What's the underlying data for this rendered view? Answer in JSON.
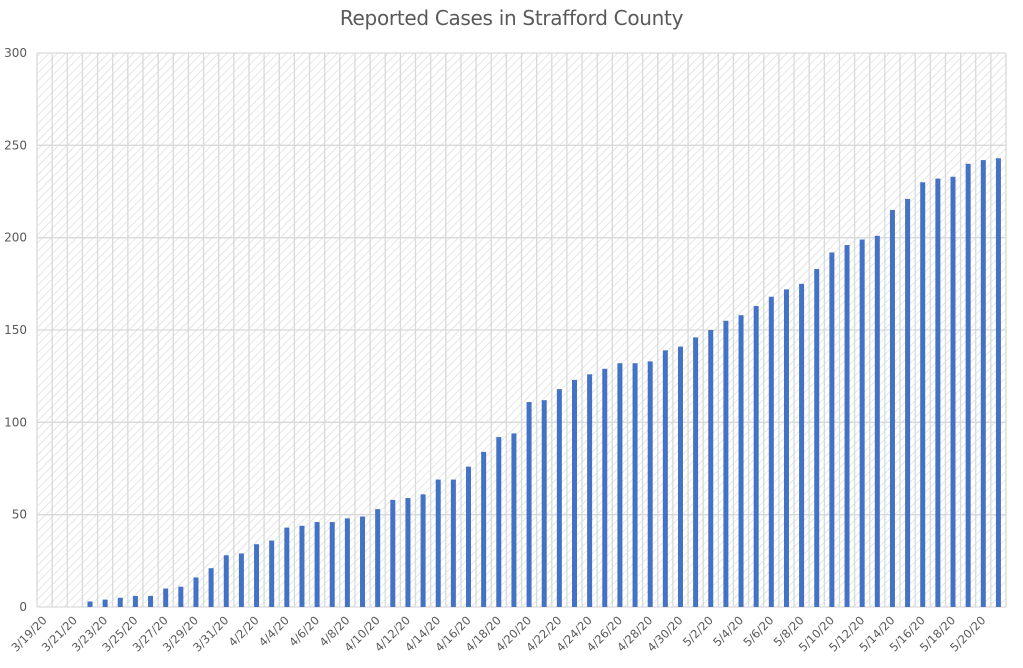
{
  "chart_data": {
    "type": "bar",
    "title": "Reported Cases in Strafford County",
    "xlabel": "",
    "ylabel": "",
    "ylim": [
      0,
      300
    ],
    "yticks": [
      0,
      50,
      100,
      150,
      200,
      250,
      300
    ],
    "grid": true,
    "legend": "none",
    "colors": {
      "bar": "#4472C4",
      "grid": "#D9D9D9",
      "hatch": "#D6D6D6",
      "text": "#595959"
    },
    "label_every": 2,
    "categories": [
      "3/19/20",
      "3/20/20",
      "3/21/20",
      "3/22/20",
      "3/23/20",
      "3/24/20",
      "3/25/20",
      "3/26/20",
      "3/27/20",
      "3/28/20",
      "3/29/20",
      "3/30/20",
      "3/31/20",
      "4/1/20",
      "4/2/20",
      "4/3/20",
      "4/4/20",
      "4/5/20",
      "4/6/20",
      "4/7/20",
      "4/8/20",
      "4/9/20",
      "4/10/20",
      "4/11/20",
      "4/12/20",
      "4/13/20",
      "4/14/20",
      "4/15/20",
      "4/16/20",
      "4/17/20",
      "4/18/20",
      "4/19/20",
      "4/20/20",
      "4/21/20",
      "4/22/20",
      "4/23/20",
      "4/24/20",
      "4/25/20",
      "4/26/20",
      "4/27/20",
      "4/28/20",
      "4/29/20",
      "4/30/20",
      "5/1/20",
      "5/2/20",
      "5/3/20",
      "5/4/20",
      "5/5/20",
      "5/6/20",
      "5/7/20",
      "5/8/20",
      "5/9/20",
      "5/10/20",
      "5/11/20",
      "5/12/20",
      "5/13/20",
      "5/14/20",
      "5/15/20",
      "5/16/20",
      "5/17/20",
      "5/18/20",
      "5/19/20",
      "5/20/20",
      "5/21/20"
    ],
    "values": [
      0,
      0,
      0,
      3,
      4,
      5,
      6,
      6,
      10,
      11,
      16,
      21,
      28,
      29,
      34,
      36,
      43,
      44,
      46,
      46,
      48,
      49,
      53,
      58,
      59,
      61,
      69,
      69,
      76,
      84,
      92,
      94,
      111,
      112,
      118,
      123,
      126,
      129,
      132,
      132,
      133,
      139,
      141,
      146,
      150,
      155,
      158,
      163,
      168,
      172,
      175,
      183,
      192,
      196,
      199,
      201,
      215,
      221,
      230,
      232,
      233,
      240,
      242,
      243
    ]
  }
}
